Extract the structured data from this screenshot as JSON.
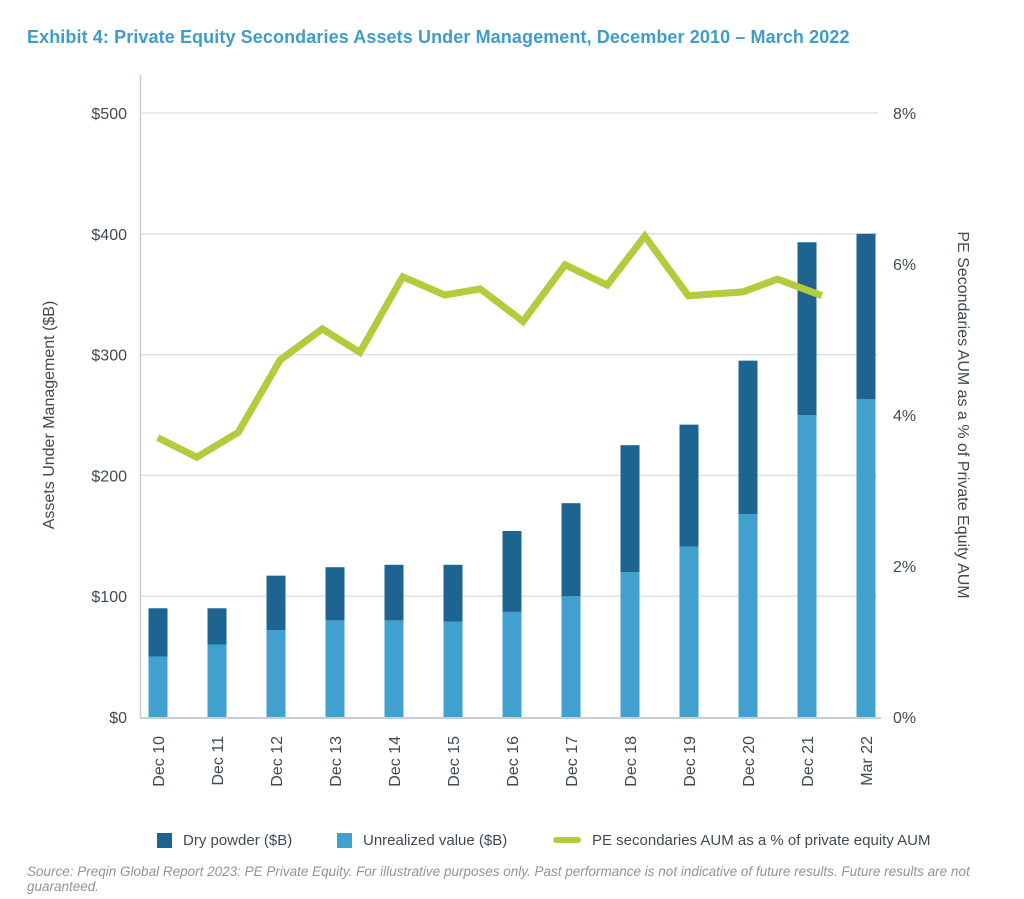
{
  "title": "Exhibit 4: Private Equity Secondaries Assets Under Management, December 2010 – March 2022",
  "source_note": "Source: Preqin Global Report 2023: PE Private Equity. For illustrative purposes only. Past performance is not indicative of future results. Future results are not guaranteed.",
  "legend": [
    {
      "label": "Dry powder ($B)",
      "color": "#1d6490",
      "swatch": "square"
    },
    {
      "label": "Unrealized value ($B)",
      "color": "#41a0cd",
      "swatch": "square"
    },
    {
      "label": "PE secondaries AUM as a % of private equity AUM",
      "color": "#b3cb3c",
      "swatch": "line"
    }
  ],
  "colors": {
    "title": "#3f9dc9",
    "dry_powder": "#1d6490",
    "unrealized_value": "#41a0cd",
    "line_green": "#b3cb3c",
    "gridline": "#dadfe4",
    "axis_spine": "#c6cdd4",
    "axis_text": "#3f4a54",
    "source_text": "#8d949c"
  },
  "chart_data": {
    "type": "bar",
    "subtype": "stacked-bar-with-line",
    "categories": [
      "Dec 10",
      "Dec 11",
      "Dec 12",
      "Dec 13",
      "Dec 14",
      "Dec 15",
      "Dec 16",
      "Dec 17",
      "Dec 18",
      "Dec 19",
      "Dec 20",
      "Dec 21",
      "Mar 22"
    ],
    "series": [
      {
        "name": "Dry powder ($B)",
        "chart": "stacked-bar",
        "stack_position": "top",
        "axis": "left",
        "color": "#1d6490",
        "values": [
          40,
          30,
          45,
          44,
          46,
          47,
          67,
          77,
          105,
          101,
          127,
          143,
          137
        ]
      },
      {
        "name": "Unrealized value ($B)",
        "chart": "stacked-bar",
        "stack_position": "bottom",
        "axis": "left",
        "color": "#41a0cd",
        "values": [
          50,
          60,
          72,
          80,
          80,
          79,
          87,
          100,
          120,
          141,
          168,
          250,
          263
        ]
      },
      {
        "name": "PE secondaries AUM as a % of private equity AUM",
        "chart": "line",
        "axis": "right",
        "color": "#b3cb3c",
        "values": [
          3.7,
          3.45,
          4.75,
          5.15,
          5.85,
          5.6,
          5.25,
          6.0,
          6.4,
          5.6,
          5.65,
          5.7,
          5.55
        ],
        "detail_points": [
          [
            0.024,
            3.7
          ],
          [
            0.077,
            3.44
          ],
          [
            0.133,
            3.77
          ],
          [
            0.19,
            4.73
          ],
          [
            0.247,
            5.14
          ],
          [
            0.298,
            4.83
          ],
          [
            0.356,
            5.83
          ],
          [
            0.413,
            5.59
          ],
          [
            0.461,
            5.67
          ],
          [
            0.519,
            5.24
          ],
          [
            0.576,
            5.99
          ],
          [
            0.633,
            5.72
          ],
          [
            0.684,
            6.37
          ],
          [
            0.743,
            5.58
          ],
          [
            0.817,
            5.63
          ],
          [
            0.864,
            5.8
          ],
          [
            0.924,
            5.58
          ]
        ]
      }
    ],
    "stacked_totals": [
      90,
      90,
      117,
      124,
      126,
      126,
      154,
      177,
      225,
      242,
      295,
      393,
      400
    ],
    "left_axis": {
      "label": "Assets Under Management ($B)",
      "ticks": [
        "$0",
        "$100",
        "$200",
        "$300",
        "$400",
        "$500"
      ],
      "min": 0,
      "max": 500,
      "step": 100
    },
    "right_axis": {
      "label": "PE Secondaries AUM as a % of Private Equity AUM",
      "ticks": [
        "0%",
        "2%",
        "4%",
        "6%",
        "8%"
      ],
      "min": 0,
      "max": 8,
      "step": 2
    },
    "grid": true,
    "legend_position": "bottom"
  }
}
